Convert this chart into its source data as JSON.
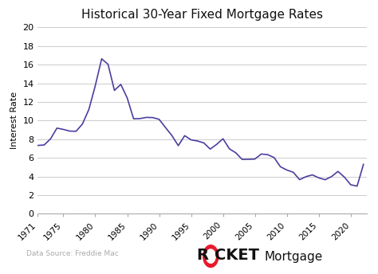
{
  "title": "Historical 30-Year Fixed Mortgage Rates",
  "ylabel": "Interest Rate",
  "line_color": "#4a3f9f",
  "background_color": "#ffffff",
  "grid_color": "#cccccc",
  "ylim": [
    0,
    20
  ],
  "yticks": [
    0,
    2,
    4,
    6,
    8,
    10,
    12,
    14,
    16,
    18,
    20
  ],
  "xticks": [
    1971,
    1975,
    1980,
    1985,
    1990,
    1995,
    2000,
    2005,
    2010,
    2015,
    2020
  ],
  "data_source_text": "Data Source: Freddie Mac",
  "years": [
    1971,
    1972,
    1973,
    1974,
    1975,
    1976,
    1977,
    1978,
    1979,
    1980,
    1981,
    1982,
    1983,
    1984,
    1985,
    1986,
    1987,
    1988,
    1989,
    1990,
    1991,
    1992,
    1993,
    1994,
    1995,
    1996,
    1997,
    1998,
    1999,
    2000,
    2001,
    2002,
    2003,
    2004,
    2005,
    2006,
    2007,
    2008,
    2009,
    2010,
    2011,
    2012,
    2013,
    2014,
    2015,
    2016,
    2017,
    2018,
    2019,
    2020,
    2021,
    2022
  ],
  "rates": [
    7.33,
    7.38,
    8.04,
    9.19,
    9.05,
    8.87,
    8.85,
    9.64,
    11.2,
    13.74,
    16.63,
    16.04,
    13.24,
    13.88,
    12.43,
    10.19,
    10.21,
    10.34,
    10.32,
    10.13,
    9.25,
    8.39,
    7.31,
    8.38,
    7.93,
    7.81,
    7.6,
    6.94,
    7.44,
    8.05,
    6.97,
    6.54,
    5.83,
    5.84,
    5.87,
    6.41,
    6.34,
    6.03,
    5.04,
    4.69,
    4.45,
    3.66,
    3.98,
    4.17,
    3.85,
    3.65,
    3.99,
    4.54,
    3.94,
    3.11,
    2.96,
    5.3
  ]
}
